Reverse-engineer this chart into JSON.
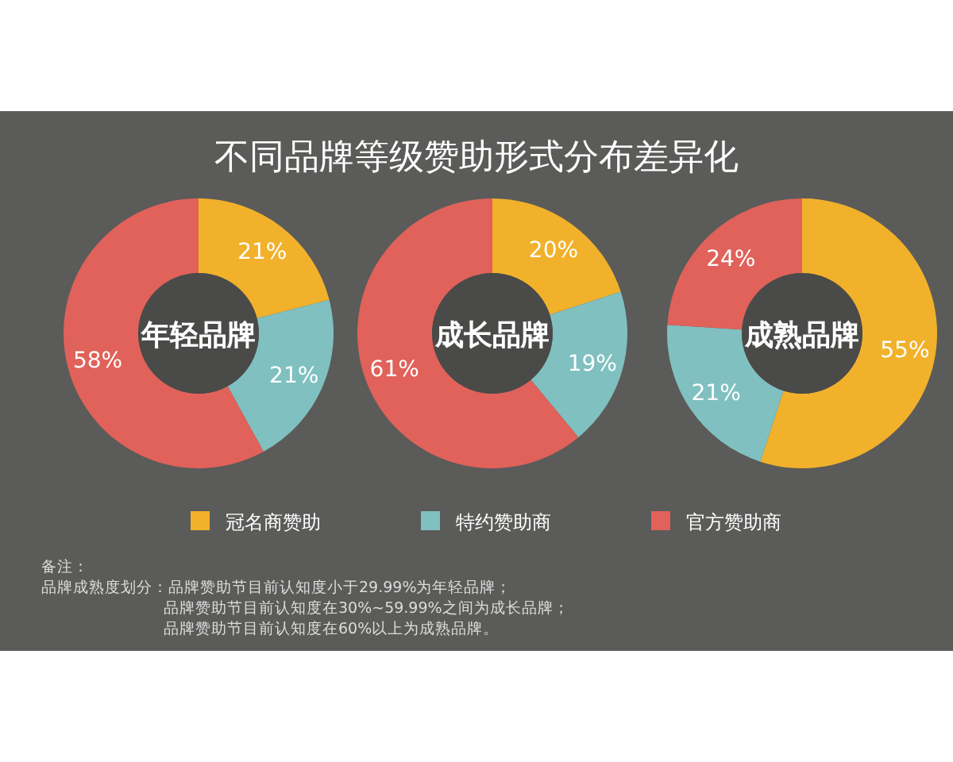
{
  "chart_data": [
    {
      "type": "donut",
      "title": "年轻品牌",
      "categories": [
        null,
        null,
        null
      ],
      "values": [
        21,
        21,
        58
      ],
      "value_labels": [
        "21%",
        "21%",
        "58%"
      ],
      "colors": [
        "#f1b12b",
        "#80c0c0",
        "#e0625a"
      ],
      "annotations": [
        "不同品牌等级赞助形式分布差异化",
        "备注：",
        "品牌成熟度划分：品牌赞助节目前认知度小于29.99%为年轻品牌；",
        "品牌赞助节目前认知度在30%~59.99%之间为成长品牌；",
        "品牌赞助节目前认知度在60%以上为成熟品牌。"
      ]
    },
    {
      "type": "donut",
      "title": "成长品牌",
      "categories": [
        "冠名商赞助",
        "特约赞助商",
        "官方赞助商"
      ],
      "values": [
        20,
        19,
        61
      ],
      "value_labels": [
        "20%",
        "19%",
        "61%"
      ],
      "colors": [
        "#f1b12b",
        "#80c0c0",
        "#e0625a"
      ],
      "legend": "bottom"
    },
    {
      "type": "donut",
      "title": "成熟品牌",
      "categories": [
        null,
        null,
        null
      ],
      "values": [
        55,
        21,
        24
      ],
      "value_labels": [
        "55%",
        "21%",
        "24%"
      ],
      "colors": [
        "#f1b12b",
        "#80c0c0",
        "#e0625a"
      ]
    }
  ]
}
